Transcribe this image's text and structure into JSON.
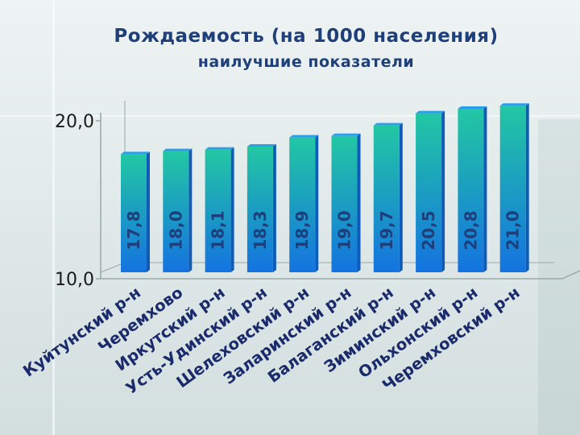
{
  "title": "Рождаемость (на 1000 населения)",
  "subtitle": "наилучшие показатели",
  "chart_data": {
    "type": "bar",
    "categories": [
      "Куйтунский р-н",
      "Черемхово",
      "Иркутский р-н",
      "Усть-Удинский р-н",
      "Шелеховский р-н",
      "Заларинский р-н",
      "Балаганский р-н",
      "Зиминский р-н",
      "Ольхонский р-н",
      "Черемховский р-н"
    ],
    "values": [
      17.8,
      18.0,
      18.1,
      18.3,
      18.9,
      19.0,
      19.7,
      20.5,
      20.8,
      21.0
    ],
    "value_labels": [
      "17,8",
      "18,0",
      "18,1",
      "18,3",
      "18,9",
      "19,0",
      "19,7",
      "20,5",
      "20,8",
      "21,0"
    ],
    "y_tick_labels": [
      "10,0",
      "20,0"
    ],
    "y_ticks": [
      10,
      20
    ],
    "ylim": [
      10,
      21.6
    ],
    "grid": false,
    "legend": "none",
    "colors": {
      "bar_top": "#22c7a4",
      "bar_bottom": "#1473e0",
      "bar_side": "#0f5cb8",
      "bar_cap": "#2a9ee8",
      "label": "#1a2a6a",
      "value_text": "#1d3f7c",
      "axis": "#9aa8a8"
    }
  }
}
